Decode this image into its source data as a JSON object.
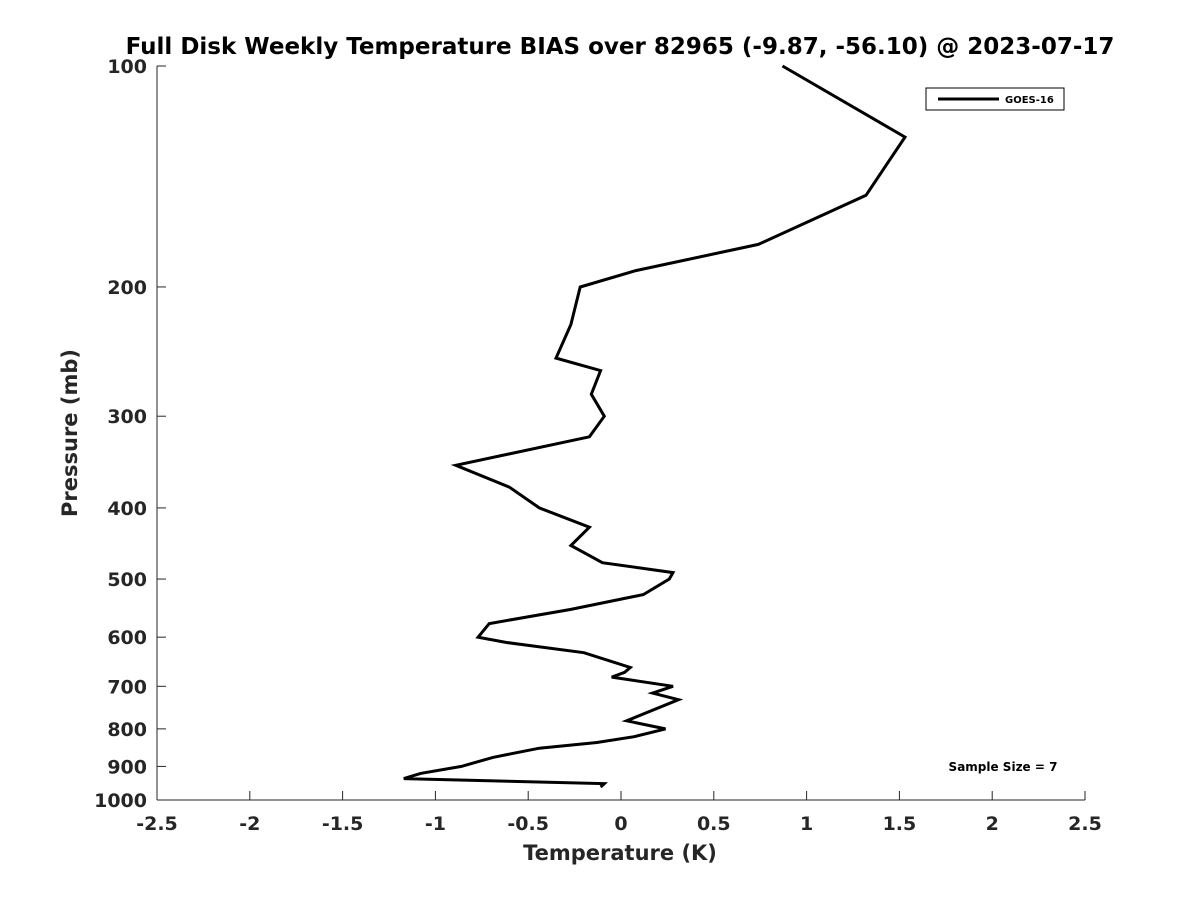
{
  "chart_data": {
    "type": "line",
    "title": "Full Disk Weekly Temperature BIAS over 82965 (-9.87, -56.10) @ 2023-07-17",
    "xlabel": "Temperature (K)",
    "ylabel": "Pressure (mb)",
    "xlim": [
      -2.5,
      2.5
    ],
    "ylim": [
      100,
      1000
    ],
    "y_scale": "log",
    "y_reversed": true,
    "x_ticks": [
      -2.5,
      -2,
      -1.5,
      -1,
      -0.5,
      0,
      0.5,
      1,
      1.5,
      2,
      2.5
    ],
    "x_tick_labels": [
      "-2.5",
      "-2",
      "-1.5",
      "-1",
      "-0.5",
      "0",
      "0.5",
      "1",
      "1.5",
      "2",
      "2.5"
    ],
    "y_ticks": [
      100,
      200,
      300,
      400,
      500,
      600,
      700,
      800,
      900,
      1000
    ],
    "y_tick_labels": [
      "100",
      "200",
      "300",
      "400",
      "500",
      "600",
      "700",
      "800",
      "900",
      "1000"
    ],
    "grid": false,
    "legend_position": "top-right",
    "annotation": "Sample Size = 7",
    "series": [
      {
        "name": "GOES-16",
        "color": "#000000",
        "points": [
          {
            "t": 0.87,
            "p": 100
          },
          {
            "t": 1.53,
            "p": 125
          },
          {
            "t": 1.32,
            "p": 150
          },
          {
            "t": 0.74,
            "p": 175
          },
          {
            "t": 0.08,
            "p": 190
          },
          {
            "t": -0.22,
            "p": 200
          },
          {
            "t": -0.27,
            "p": 225
          },
          {
            "t": -0.35,
            "p": 250
          },
          {
            "t": -0.11,
            "p": 260
          },
          {
            "t": -0.16,
            "p": 280
          },
          {
            "t": -0.09,
            "p": 300
          },
          {
            "t": -0.17,
            "p": 320
          },
          {
            "t": -0.89,
            "p": 350
          },
          {
            "t": -0.6,
            "p": 375
          },
          {
            "t": -0.44,
            "p": 400
          },
          {
            "t": -0.17,
            "p": 425
          },
          {
            "t": -0.27,
            "p": 450
          },
          {
            "t": -0.1,
            "p": 475
          },
          {
            "t": 0.28,
            "p": 490
          },
          {
            "t": 0.26,
            "p": 500
          },
          {
            "t": 0.12,
            "p": 525
          },
          {
            "t": -0.27,
            "p": 550
          },
          {
            "t": -0.71,
            "p": 575
          },
          {
            "t": -0.77,
            "p": 600
          },
          {
            "t": -0.62,
            "p": 610
          },
          {
            "t": -0.2,
            "p": 630
          },
          {
            "t": 0.05,
            "p": 660
          },
          {
            "t": 0.02,
            "p": 670
          },
          {
            "t": -0.05,
            "p": 680
          },
          {
            "t": 0.28,
            "p": 700
          },
          {
            "t": 0.17,
            "p": 715
          },
          {
            "t": 0.31,
            "p": 730
          },
          {
            "t": 0.03,
            "p": 780
          },
          {
            "t": 0.24,
            "p": 800
          },
          {
            "t": 0.07,
            "p": 820
          },
          {
            "t": -0.13,
            "p": 835
          },
          {
            "t": -0.44,
            "p": 850
          },
          {
            "t": -0.69,
            "p": 875
          },
          {
            "t": -0.86,
            "p": 900
          },
          {
            "t": -1.08,
            "p": 920
          },
          {
            "t": -1.17,
            "p": 935
          },
          {
            "t": -0.09,
            "p": 950
          },
          {
            "t": -0.11,
            "p": 960
          }
        ]
      }
    ]
  }
}
